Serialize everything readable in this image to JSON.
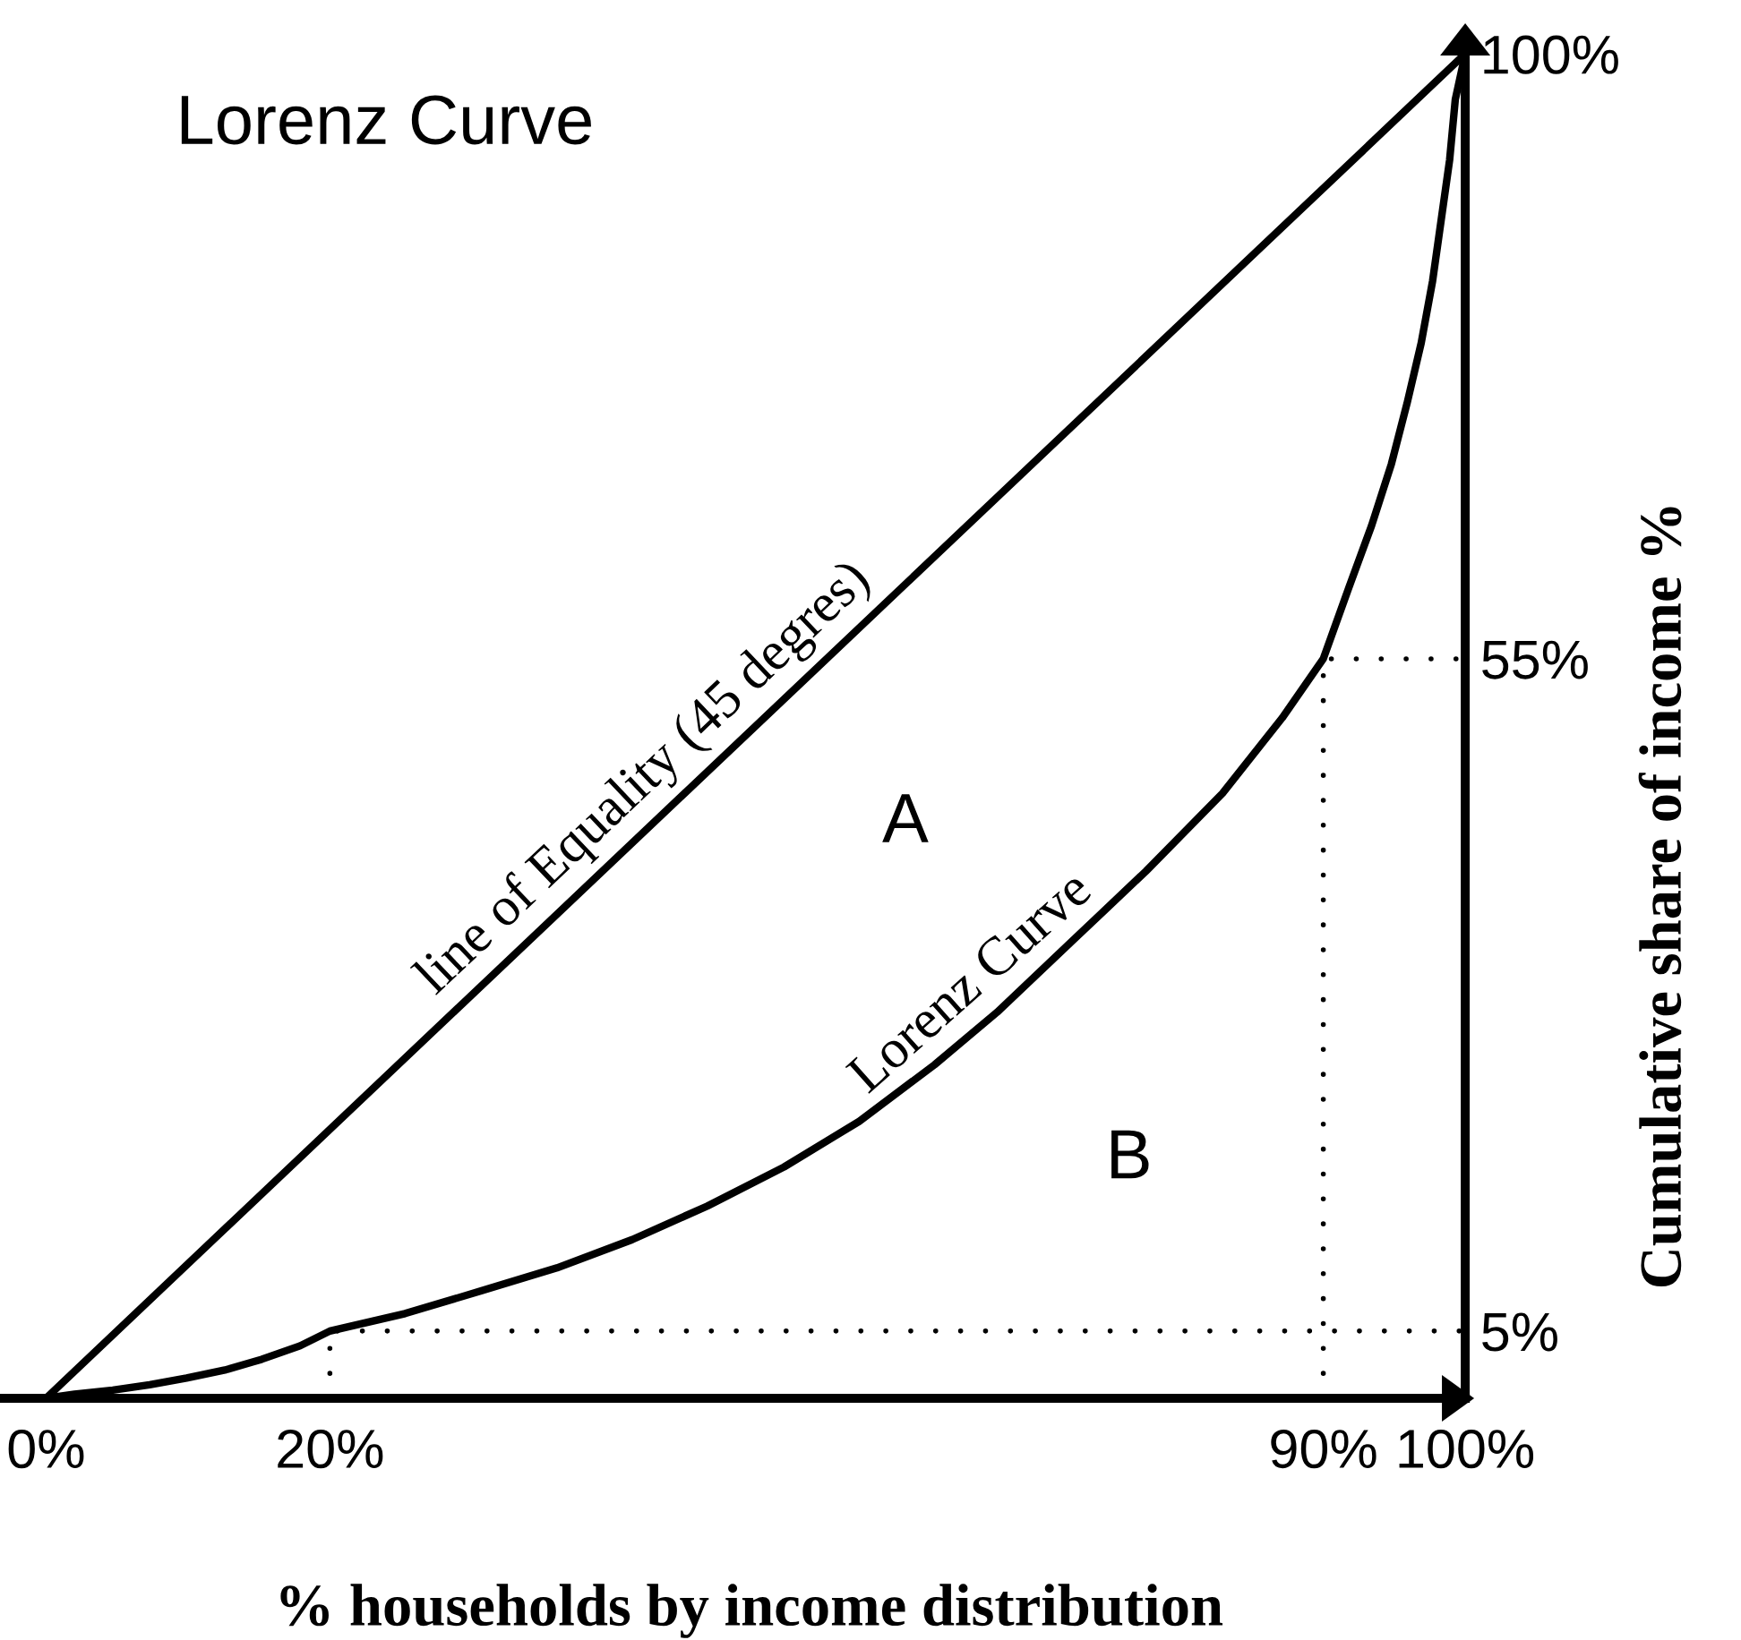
{
  "chart_data": {
    "type": "line",
    "title": "Lorenz Curve",
    "xlabel": "% households by income distribution",
    "ylabel": "Cumulative share of income %",
    "xlim": [
      -3,
      100
    ],
    "ylim": [
      0,
      100
    ],
    "xticks": [
      {
        "value": 0,
        "label": "0%"
      },
      {
        "value": 20,
        "label": "20%"
      },
      {
        "value": 90,
        "label": "90%"
      },
      {
        "value": 100,
        "label": "100%"
      }
    ],
    "yticks": [
      {
        "value": 5,
        "label": "5%"
      },
      {
        "value": 55,
        "label": "55%"
      },
      {
        "value": 100,
        "label": "100%"
      }
    ],
    "series": [
      {
        "name": "line of Equality (45 degres)",
        "color": "#000000",
        "x": [
          0,
          100
        ],
        "values": [
          0,
          100
        ],
        "line_style": "solid"
      },
      {
        "name": "Lorenz Curve",
        "color": "#000000",
        "x": [
          0,
          2,
          4.7,
          7.3,
          9.9,
          12.6,
          15.2,
          17.9,
          20,
          25.3,
          30.7,
          36,
          41.3,
          46.6,
          52,
          57.3,
          62.6,
          67,
          72.2,
          77.5,
          82.9,
          87.1,
          90,
          91.8,
          93.4,
          94.8,
          95.9,
          96.9,
          97.7,
          98.3,
          98.9,
          99.3,
          100
        ],
        "values": [
          0,
          0.3,
          0.6,
          1,
          1.5,
          2.1,
          2.9,
          3.9,
          5,
          6.3,
          8,
          9.7,
          11.8,
          14.3,
          17.2,
          20.6,
          24.8,
          28.7,
          33.9,
          39.2,
          45,
          50.6,
          55,
          60.3,
          64.9,
          69.5,
          74,
          78.5,
          83.1,
          87.6,
          92.1,
          96.6,
          100
        ],
        "line_style": "solid"
      },
      {
        "color": "#000000",
        "x": [
          20,
          20,
          100
        ],
        "values": [
          0,
          5,
          5
        ],
        "line_style": "dotted"
      },
      {
        "color": "#000000",
        "x": [
          90,
          90,
          100
        ],
        "values": [
          0,
          55,
          55
        ],
        "line_style": "dotted"
      }
    ],
    "annotations": [
      "A",
      "B"
    ]
  }
}
